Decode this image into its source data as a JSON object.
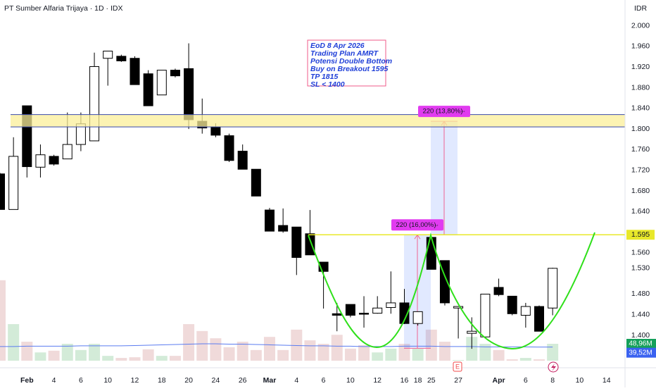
{
  "header": {
    "title": "PT Sumber Alfaria Trijaya · 1D · IDX",
    "currency": "IDR"
  },
  "chart_data": {
    "type": "candlestick",
    "categories": [
      null,
      null,
      "Feb",
      null,
      "4",
      null,
      "6",
      null,
      "10",
      null,
      "12",
      null,
      "18",
      null,
      "20",
      null,
      "24",
      null,
      "26",
      null,
      "Mar",
      null,
      "4",
      null,
      "6",
      null,
      "10",
      null,
      "12",
      null,
      "16",
      "18",
      "25",
      null,
      "27",
      null,
      null,
      "Apr",
      null,
      "6",
      null,
      "8",
      null,
      "10",
      null,
      "14"
    ],
    "open": [
      1713,
      1644,
      1845,
      1726,
      1747,
      1742,
      1770,
      1777,
      1937,
      1941,
      1937,
      1907,
      1866,
      1914,
      1917,
      1815,
      1804,
      1787,
      1757,
      1722,
      1643,
      1613,
      1610,
      1597,
      1542,
      1442,
      1460,
      1443,
      1443,
      1454,
      1463,
      1423,
      1590,
      1545,
      1453,
      1404,
      1397,
      1493,
      1476,
      1439,
      1456,
      1453,
      null,
      null,
      null,
      null
    ],
    "high": [
      1715,
      1784,
      1845,
      1770,
      1750,
      1832,
      1832,
      1948,
      1951,
      1944,
      1941,
      1914,
      1914,
      1917,
      1966,
      1859,
      1811,
      1791,
      1770,
      1722,
      1647,
      1646,
      1610,
      1643,
      1542,
      1463,
      1460,
      1476,
      1476,
      1524,
      1490,
      1446,
      1592,
      1545,
      1456,
      1435,
      1480,
      1510,
      1476,
      1463,
      1458,
      1531,
      null,
      null,
      null,
      null
    ],
    "low": [
      1644,
      1644,
      1706,
      1706,
      1729,
      1742,
      1757,
      1777,
      1884,
      1930,
      1886,
      1845,
      1866,
      1900,
      1800,
      1791,
      1784,
      1736,
      1722,
      1670,
      1602,
      1599,
      1517,
      1556,
      1452,
      1408,
      1435,
      1415,
      1442,
      1442,
      1422,
      1419,
      1528,
      1458,
      1394,
      1374,
      1394,
      1476,
      1439,
      1415,
      1408,
      1439,
      null,
      null,
      null,
      null
    ],
    "close": [
      1644,
      1747,
      1727,
      1750,
      1732,
      1770,
      1810,
      1921,
      1951,
      1932,
      1886,
      1845,
      1914,
      1903,
      1818,
      1802,
      1788,
      1739,
      1722,
      1670,
      1602,
      1602,
      1551,
      1556,
      1524,
      1439,
      1439,
      1441,
      1453,
      1463,
      1423,
      1446,
      1528,
      1463,
      1456,
      1408,
      1480,
      1479,
      1442,
      1456,
      1408,
      1530,
      null,
      null,
      null,
      null
    ],
    "up_color": "#ffffff",
    "down_color": "#000000",
    "volume": {
      "values": [
        233,
        106,
        55,
        24,
        29,
        49,
        31,
        49,
        14,
        8,
        10,
        33,
        14,
        14,
        106,
        86,
        65,
        39,
        55,
        31,
        69,
        31,
        90,
        59,
        49,
        75,
        35,
        45,
        24,
        35,
        49,
        35,
        90,
        55,
        2,
        69,
        49,
        31,
        4,
        8,
        4,
        48.96,
        null,
        null,
        null,
        null
      ],
      "ma_values": [
        41,
        41,
        42,
        42,
        42,
        42,
        43,
        43,
        43,
        43,
        44,
        45,
        46,
        47,
        48,
        49,
        49,
        48,
        48,
        47,
        46,
        45,
        44,
        43,
        43,
        42,
        42,
        41,
        41,
        41,
        42,
        42,
        42,
        41,
        41,
        41,
        40,
        40,
        40,
        40,
        39.5,
        39.52,
        null,
        null,
        null,
        null
      ],
      "last_label": "48,96M",
      "ma_last_label": "39,52M",
      "up_color": "#d3ebd8",
      "down_color": "#f0dada",
      "ma_color": "#5b7cf0"
    },
    "ylim": [
      1340,
      2050
    ],
    "yticks": [
      {
        "value": 2000,
        "label": "2.000"
      },
      {
        "value": 1960,
        "label": "1.960"
      },
      {
        "value": 1920,
        "label": "1.920"
      },
      {
        "value": 1880,
        "label": "1.880"
      },
      {
        "value": 1840,
        "label": "1.840"
      },
      {
        "value": 1800,
        "label": "1.800"
      },
      {
        "value": 1760,
        "label": "1.760"
      },
      {
        "value": 1720,
        "label": "1.720"
      },
      {
        "value": 1680,
        "label": "1.680"
      },
      {
        "value": 1640,
        "label": "1.640"
      },
      {
        "value": 1560,
        "label": "1.560"
      },
      {
        "value": 1480,
        "label": "1.480"
      },
      {
        "value": 1440,
        "label": "1.440"
      },
      {
        "value": 1400,
        "label": "1.400"
      }
    ],
    "grid": false,
    "last_price": {
      "value": 1530,
      "label": "1.530"
    },
    "level": {
      "value": 1595,
      "label": "1.595",
      "color": "#e8e82a"
    },
    "zone": {
      "low": 1804,
      "high": 1828,
      "color": "#fbef9a",
      "border": "#3949ab"
    },
    "measures": [
      {
        "from": 1375,
        "to": 1595,
        "label": "220 (16,00%)"
      },
      {
        "from": 1595,
        "to": 1815,
        "label": "220 (13,80%)"
      }
    ],
    "note": [
      "EoD 8 Apr 2026",
      "Trading Plan AMRT",
      "Potensi Double Bottom",
      "Buy on Breakout 1595",
      "TP 1815",
      "SL < 1400"
    ],
    "earnings_marker": "E"
  }
}
